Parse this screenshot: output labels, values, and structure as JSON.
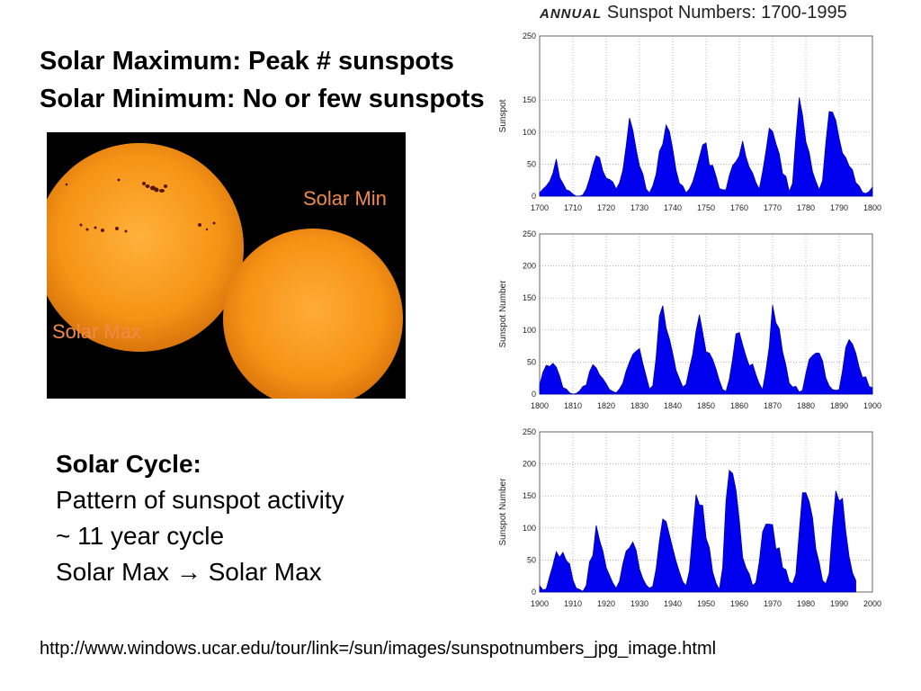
{
  "slide": {
    "heading_line1": "Solar Maximum:  Peak # sunspots",
    "heading_line2": "Solar Minimum:  No or few sunspots",
    "photo_label_min": "Solar Min",
    "photo_label_max": "Solar Max",
    "cycle_title": "Solar Cycle:",
    "cycle_line1": "Pattern of sunspot activity",
    "cycle_line2": "~ 11 year cycle",
    "cycle_line3_left": "Solar Max",
    "cycle_line3_right": "Solar Max",
    "source_url": "http://www.windows.ucar.edu/tour/link=/sun/images/sunspotnumbers_jpg_image.html"
  },
  "chart_header": {
    "annual": "ANNUAL",
    "rest": " Sunspot Numbers:  1700-1995"
  },
  "colors": {
    "fill": "#0000ee",
    "grid": "#999999",
    "sun": "#f59a1e"
  },
  "chart_data": [
    {
      "type": "area",
      "ylabel": "Sunspot",
      "xlim": [
        1700,
        1800
      ],
      "ylim": [
        0,
        250
      ],
      "xticks": [
        "1700",
        "1710",
        "1720",
        "1730",
        "1740",
        "1750",
        "1760",
        "1770",
        "1780",
        "1790",
        "1800"
      ],
      "yticks": [
        "0",
        "50",
        "100",
        "150",
        "250"
      ],
      "x": [
        1700,
        1701,
        1702,
        1703,
        1704,
        1705,
        1706,
        1707,
        1708,
        1709,
        1710,
        1711,
        1712,
        1713,
        1714,
        1715,
        1716,
        1717,
        1718,
        1719,
        1720,
        1721,
        1722,
        1723,
        1724,
        1725,
        1726,
        1727,
        1728,
        1729,
        1730,
        1731,
        1732,
        1733,
        1734,
        1735,
        1736,
        1737,
        1738,
        1739,
        1740,
        1741,
        1742,
        1743,
        1744,
        1745,
        1746,
        1747,
        1748,
        1749,
        1750,
        1751,
        1752,
        1753,
        1754,
        1755,
        1756,
        1757,
        1758,
        1759,
        1760,
        1761,
        1762,
        1763,
        1764,
        1765,
        1766,
        1767,
        1768,
        1769,
        1770,
        1771,
        1772,
        1773,
        1774,
        1775,
        1776,
        1777,
        1778,
        1779,
        1780,
        1781,
        1782,
        1783,
        1784,
        1785,
        1786,
        1787,
        1788,
        1789,
        1790,
        1791,
        1792,
        1793,
        1794,
        1795,
        1796,
        1797,
        1798,
        1799,
        1800
      ],
      "y": [
        5,
        11,
        16,
        23,
        36,
        58,
        29,
        20,
        10,
        8,
        3,
        0,
        0,
        2,
        11,
        27,
        47,
        63,
        60,
        39,
        28,
        26,
        22,
        11,
        21,
        40,
        78,
        122,
        103,
        73,
        47,
        35,
        11,
        5,
        16,
        34,
        70,
        81,
        111,
        101,
        73,
        40,
        20,
        16,
        5,
        11,
        22,
        40,
        60,
        80,
        83,
        48,
        48,
        31,
        12,
        10,
        10,
        32,
        48,
        54,
        63,
        86,
        61,
        45,
        36,
        21,
        11,
        38,
        70,
        106,
        101,
        82,
        66,
        35,
        31,
        7,
        20,
        92,
        154,
        126,
        85,
        68,
        38,
        23,
        10,
        24,
        83,
        132,
        131,
        118,
        90,
        67,
        60,
        47,
        41,
        21,
        16,
        6,
        4,
        7,
        14
      ]
    },
    {
      "type": "area",
      "ylabel": "Sunspot Number",
      "xlim": [
        1800,
        1900
      ],
      "ylim": [
        0,
        250
      ],
      "xticks": [
        "1800",
        "1810",
        "1820",
        "1830",
        "1840",
        "1850",
        "1860",
        "1870",
        "1880",
        "1890",
        "1900"
      ],
      "yticks": [
        "0",
        "50",
        "100",
        "150",
        "200",
        "250"
      ],
      "x": [
        1800,
        1801,
        1802,
        1803,
        1804,
        1805,
        1806,
        1807,
        1808,
        1809,
        1810,
        1811,
        1812,
        1813,
        1814,
        1815,
        1816,
        1817,
        1818,
        1819,
        1820,
        1821,
        1822,
        1823,
        1824,
        1825,
        1826,
        1827,
        1828,
        1829,
        1830,
        1831,
        1832,
        1833,
        1834,
        1835,
        1836,
        1837,
        1838,
        1839,
        1840,
        1841,
        1842,
        1843,
        1844,
        1845,
        1846,
        1847,
        1848,
        1849,
        1850,
        1851,
        1852,
        1853,
        1854,
        1855,
        1856,
        1857,
        1858,
        1859,
        1860,
        1861,
        1862,
        1863,
        1864,
        1865,
        1866,
        1867,
        1868,
        1869,
        1870,
        1871,
        1872,
        1873,
        1874,
        1875,
        1876,
        1877,
        1878,
        1879,
        1880,
        1881,
        1882,
        1883,
        1884,
        1885,
        1886,
        1887,
        1888,
        1889,
        1890,
        1891,
        1892,
        1893,
        1894,
        1895,
        1896,
        1897,
        1898,
        1899,
        1900
      ],
      "y": [
        14,
        34,
        45,
        43,
        48,
        42,
        28,
        10,
        8,
        2,
        0,
        1,
        5,
        12,
        14,
        35,
        46,
        41,
        30,
        24,
        16,
        7,
        4,
        2,
        8,
        17,
        36,
        50,
        62,
        67,
        71,
        48,
        28,
        8,
        13,
        57,
        122,
        138,
        103,
        86,
        63,
        37,
        24,
        11,
        15,
        40,
        62,
        98,
        124,
        96,
        66,
        64,
        54,
        39,
        21,
        7,
        4,
        23,
        55,
        94,
        96,
        77,
        59,
        44,
        47,
        30,
        16,
        7,
        37,
        74,
        139,
        111,
        102,
        66,
        45,
        17,
        11,
        12,
        3,
        6,
        32,
        54,
        60,
        64,
        64,
        52,
        25,
        13,
        7,
        6,
        7,
        36,
        73,
        85,
        78,
        64,
        42,
        26,
        27,
        12,
        10
      ]
    },
    {
      "type": "area",
      "ylabel": "Sunspot Number",
      "xlim": [
        1900,
        2000
      ],
      "ylim": [
        0,
        250
      ],
      "xticks": [
        "1900",
        "1910",
        "1920",
        "1930",
        "1940",
        "1950",
        "1960",
        "1970",
        "1980",
        "1990",
        "2000"
      ],
      "yticks": [
        "0",
        "50",
        "100",
        "150",
        "200",
        "250"
      ],
      "x": [
        1900,
        1901,
        1902,
        1903,
        1904,
        1905,
        1906,
        1907,
        1908,
        1909,
        1910,
        1911,
        1912,
        1913,
        1914,
        1915,
        1916,
        1917,
        1918,
        1919,
        1920,
        1921,
        1922,
        1923,
        1924,
        1925,
        1926,
        1927,
        1928,
        1929,
        1930,
        1931,
        1932,
        1933,
        1934,
        1935,
        1936,
        1937,
        1938,
        1939,
        1940,
        1941,
        1942,
        1943,
        1944,
        1945,
        1946,
        1947,
        1948,
        1949,
        1950,
        1951,
        1952,
        1953,
        1954,
        1955,
        1956,
        1957,
        1958,
        1959,
        1960,
        1961,
        1962,
        1963,
        1964,
        1965,
        1966,
        1967,
        1968,
        1969,
        1970,
        1971,
        1972,
        1973,
        1974,
        1975,
        1976,
        1977,
        1978,
        1979,
        1980,
        1981,
        1982,
        1983,
        1984,
        1985,
        1986,
        1987,
        1988,
        1989,
        1990,
        1991,
        1992,
        1993,
        1994,
        1995
      ],
      "y": [
        10,
        3,
        5,
        24,
        42,
        63,
        54,
        62,
        49,
        44,
        19,
        6,
        4,
        1,
        10,
        47,
        57,
        104,
        81,
        64,
        38,
        26,
        14,
        6,
        17,
        44,
        64,
        69,
        78,
        65,
        36,
        21,
        11,
        6,
        9,
        36,
        80,
        114,
        110,
        89,
        68,
        48,
        31,
        16,
        10,
        33,
        93,
        152,
        136,
        135,
        84,
        69,
        31,
        14,
        4,
        38,
        142,
        190,
        185,
        159,
        112,
        54,
        38,
        28,
        10,
        15,
        47,
        94,
        106,
        106,
        105,
        67,
        69,
        38,
        35,
        16,
        13,
        28,
        93,
        155,
        155,
        141,
        116,
        67,
        46,
        18,
        13,
        29,
        100,
        158,
        142,
        146,
        94,
        55,
        30,
        18
      ]
    }
  ]
}
